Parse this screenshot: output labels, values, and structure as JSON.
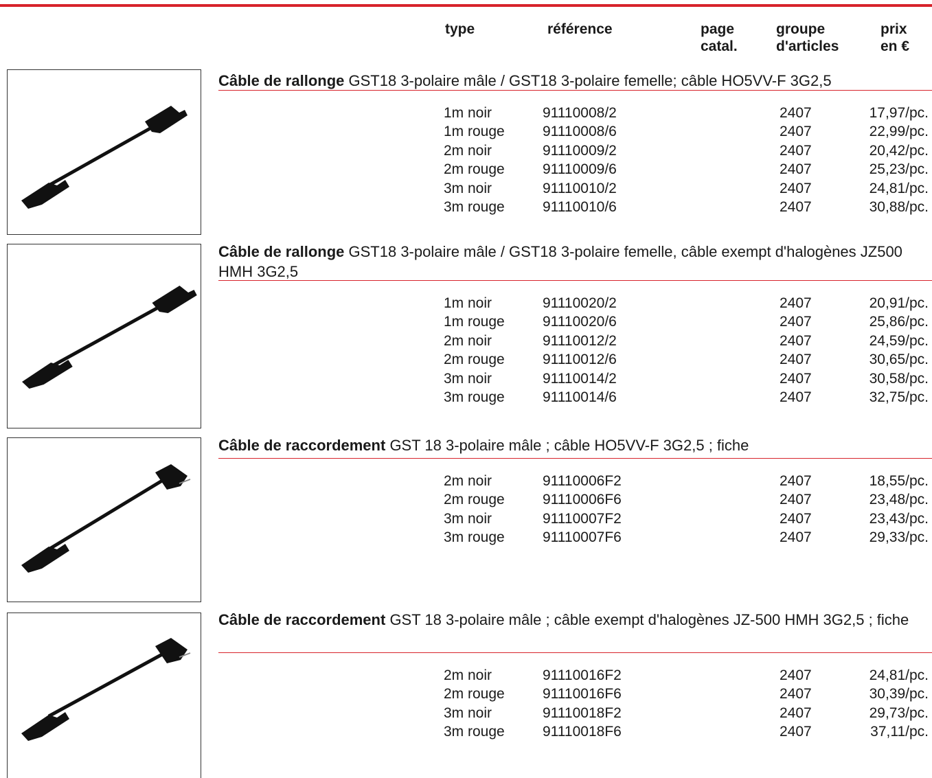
{
  "header": {
    "columns": [
      [
        "type"
      ],
      [
        "référence"
      ],
      [
        "page",
        "catal."
      ],
      [
        "groupe",
        "d'articles"
      ],
      [
        "prix",
        "en €"
      ]
    ]
  },
  "sections": [
    {
      "title_bold": "Câble de rallonge",
      "title_rest": "GST18 3-polaire mâle / GST18 3-polaire femelle; câble HO5VV-F 3G2,5",
      "rows": [
        [
          "1m noir",
          "91110008/2",
          "2407",
          "17,97/pc."
        ],
        [
          "1m rouge",
          "91110008/6",
          "2407",
          "22,99/pc."
        ],
        [
          "2m noir",
          "91110009/2",
          "2407",
          "20,42/pc."
        ],
        [
          "2m rouge",
          "91110009/6",
          "2407",
          "25,23/pc."
        ],
        [
          "3m noir",
          "91110010/2",
          "2407",
          "24,81/pc."
        ],
        [
          "3m rouge",
          "91110010/6",
          "2407",
          "30,88/pc."
        ]
      ]
    },
    {
      "title_bold": "Câble de rallonge",
      "title_rest": "GST18 3-polaire mâle / GST18 3-polaire femelle, câble exempt d'halogènes JZ500 HMH 3G2,5",
      "rows": [
        [
          "1m noir",
          "91110020/2",
          "2407",
          "20,91/pc."
        ],
        [
          "1m rouge",
          "91110020/6",
          "2407",
          "25,86/pc."
        ],
        [
          "2m noir",
          "91110012/2",
          "2407",
          "24,59/pc."
        ],
        [
          "2m rouge",
          "91110012/6",
          "2407",
          "30,65/pc."
        ],
        [
          "3m noir",
          "91110014/2",
          "2407",
          "30,58/pc."
        ],
        [
          "3m rouge",
          "91110014/6",
          "2407",
          "32,75/pc."
        ]
      ]
    },
    {
      "title_bold": "Câble de raccordement",
      "title_rest": "GST 18 3-polaire mâle ; câble HO5VV-F 3G2,5 ; fiche",
      "rows": [
        [
          "2m noir",
          "91110006F2",
          "2407",
          "18,55/pc."
        ],
        [
          "2m rouge",
          "91110006F6",
          "2407",
          "23,48/pc."
        ],
        [
          "3m noir",
          "91110007F2",
          "2407",
          "23,43/pc."
        ],
        [
          "3m rouge",
          "91110007F6",
          "2407",
          "29,33/pc."
        ]
      ]
    },
    {
      "title_bold": "Câble de raccordement",
      "title_rest": "GST 18 3-polaire mâle ; câble exempt d'halogènes JZ-500 HMH 3G2,5 ; fiche",
      "rows": [
        [
          "2m noir",
          "91110016F2",
          "2407",
          "24,81/pc."
        ],
        [
          "2m rouge",
          "91110016F6",
          "2407",
          "30,39/pc."
        ],
        [
          "3m noir",
          "91110018F2",
          "2407",
          "29,73/pc."
        ],
        [
          "3m rouge",
          "91110018F6",
          "2407",
          "37,11/pc."
        ]
      ]
    }
  ]
}
